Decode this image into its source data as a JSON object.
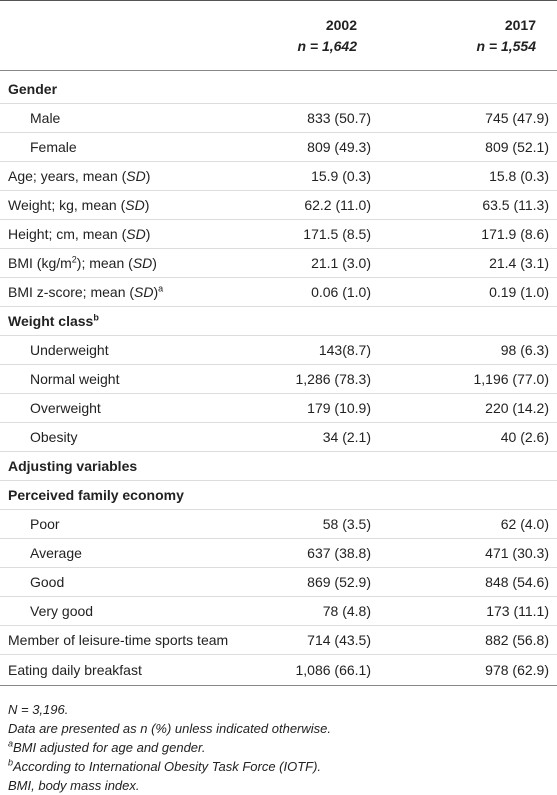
{
  "header": {
    "columns": [
      {
        "year": "2002",
        "n": [
          "n",
          " = 1,642"
        ]
      },
      {
        "year": "2017",
        "n": [
          "n",
          " = 1,554"
        ]
      }
    ]
  },
  "table": {
    "rows": [
      {
        "label": [
          "Gender"
        ]
      },
      {
        "label": [
          "Male"
        ],
        "values": [
          "833 (50.7)",
          "745 (47.9)"
        ]
      },
      {
        "label": [
          "Female"
        ],
        "values": [
          "809 (49.3)",
          "809 (52.1)"
        ]
      },
      {
        "label": [
          "Age; years, mean (",
          "SD",
          ")"
        ],
        "values": [
          "15.9 (0.3)",
          "15.8 (0.3)"
        ]
      },
      {
        "label": [
          "Weight; kg, mean (",
          "SD",
          ")"
        ],
        "values": [
          "62.2 (11.0)",
          "63.5 (11.3)"
        ]
      },
      {
        "label": [
          "Height; cm, mean (",
          "SD",
          ")"
        ],
        "values": [
          "171.5 (8.5)",
          "171.9 (8.6)"
        ]
      },
      {
        "label": [
          "BMI (kg/m",
          "2",
          "); mean (",
          "SD",
          ")"
        ],
        "values": [
          "21.1 (3.0)",
          "21.4 (3.1)"
        ]
      },
      {
        "label": [
          "BMI z-score; mean (",
          "SD",
          ")",
          "a"
        ],
        "values": [
          "0.06 (1.0)",
          "0.19 (1.0)"
        ]
      },
      {
        "label": [
          "Weight class",
          "b"
        ]
      },
      {
        "label": [
          "Underweight"
        ],
        "values": [
          "143(8.7)",
          "98 (6.3)"
        ]
      },
      {
        "label": [
          "Normal weight"
        ],
        "values": [
          "1,286 (78.3)",
          "1,196 (77.0)"
        ]
      },
      {
        "label": [
          "Overweight"
        ],
        "values": [
          "179 (10.9)",
          "220 (14.2)"
        ]
      },
      {
        "label": [
          "Obesity"
        ],
        "values": [
          "34 (2.1)",
          "40 (2.6)"
        ]
      },
      {
        "label": [
          "Adjusting variables"
        ]
      },
      {
        "label": [
          "Perceived family economy"
        ]
      },
      {
        "label": [
          "Poor"
        ],
        "values": [
          "58 (3.5)",
          "62 (4.0)"
        ]
      },
      {
        "label": [
          "Average"
        ],
        "values": [
          "637 (38.8)",
          "471 (30.3)"
        ]
      },
      {
        "label": [
          "Good"
        ],
        "values": [
          "869 (52.9)",
          "848 (54.6)"
        ]
      },
      {
        "label": [
          "Very good"
        ],
        "values": [
          "78 (4.8)",
          "173 (11.1)"
        ]
      },
      {
        "label": [
          "Member of leisure-time sports team"
        ],
        "values": [
          "714 (43.5)",
          "882 (56.8)"
        ]
      },
      {
        "label": [
          "Eating daily breakfast"
        ],
        "values": [
          "1,086 (66.1)",
          "978 (62.9)"
        ]
      }
    ]
  },
  "notes": [
    [
      "N",
      " = 3,196."
    ],
    [
      "Data are presented as n (%) unless indicated otherwise."
    ],
    [
      "a",
      "BMI adjusted for age and gender."
    ],
    [
      "b",
      "According to International Obesity Task Force (IOTF)."
    ],
    [
      "BMI, body mass index."
    ]
  ]
}
